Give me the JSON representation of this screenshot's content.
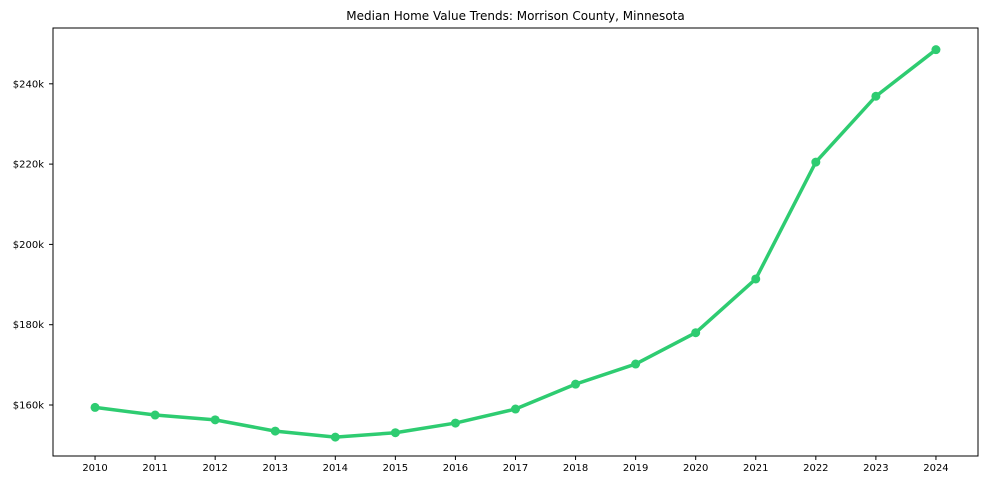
{
  "window": {
    "background": "#ffffff"
  },
  "chart_data": {
    "type": "line",
    "title": "Median Home Value Trends: Morrison County, Minnesota",
    "xlabel": "",
    "ylabel": "",
    "x": [
      2010,
      2011,
      2012,
      2013,
      2014,
      2015,
      2016,
      2017,
      2018,
      2019,
      2020,
      2021,
      2022,
      2023,
      2024
    ],
    "x_tick_labels": [
      "2010",
      "2011",
      "2012",
      "2013",
      "2014",
      "2015",
      "2016",
      "2017",
      "2018",
      "2019",
      "2020",
      "2021",
      "2022",
      "2023",
      "2024"
    ],
    "series": [
      {
        "name": "Median Home Value",
        "values": [
          159400,
          157500,
          156300,
          153500,
          152000,
          153100,
          155500,
          159000,
          165200,
          170200,
          178000,
          191400,
          220500,
          236900,
          248500
        ]
      }
    ],
    "y_ticks": [
      {
        "value": 160000,
        "label": "$160k"
      },
      {
        "value": 180000,
        "label": "$180k"
      },
      {
        "value": 200000,
        "label": "$200k"
      },
      {
        "value": 220000,
        "label": "$220k"
      },
      {
        "value": 240000,
        "label": "$240k"
      }
    ],
    "ylim": [
      147300,
      253900
    ],
    "xlim": [
      2009.3,
      2024.7
    ],
    "grid": false,
    "legend": "none",
    "line_color": "#2ecc71",
    "marker": "circle",
    "marker_radius": 4.5,
    "line_width": 3.5,
    "axis_color": "#000000",
    "text_color": "#000000",
    "background": "#ffffff"
  }
}
